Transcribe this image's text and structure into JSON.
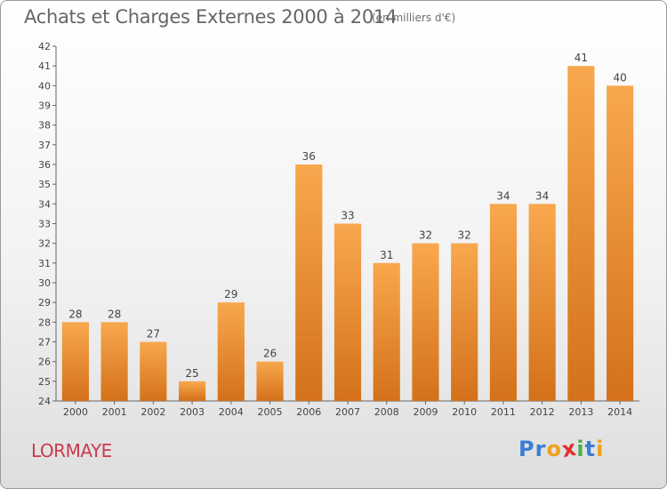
{
  "header": {
    "title": "Achats et Charges Externes 2000 à 2014",
    "subtitle": "(en milliers d'€)"
  },
  "footer": {
    "place": "LORMAYE",
    "logo_letters": [
      {
        "ch": "P",
        "color": "#3a7fd5"
      },
      {
        "ch": "r",
        "color": "#3a7fd5"
      },
      {
        "ch": "o",
        "color": "#f0a020"
      },
      {
        "ch": "x",
        "color": "#e03030"
      },
      {
        "ch": "i",
        "color": "#49b049"
      },
      {
        "ch": "t",
        "color": "#3a7fd5"
      },
      {
        "ch": "i",
        "color": "#f0a020"
      }
    ]
  },
  "chart_data": {
    "type": "bar",
    "title": "Achats et Charges Externes 2000 à 2014",
    "subtitle": "(en milliers d'€)",
    "categories": [
      "2000",
      "2001",
      "2002",
      "2003",
      "2004",
      "2005",
      "2006",
      "2007",
      "2008",
      "2009",
      "2010",
      "2011",
      "2012",
      "2013",
      "2014"
    ],
    "values": [
      28,
      28,
      27,
      25,
      29,
      26,
      36,
      33,
      31,
      32,
      32,
      34,
      34,
      41,
      40
    ],
    "ylim": [
      24,
      42
    ],
    "yticks": [
      24,
      25,
      26,
      27,
      28,
      29,
      30,
      31,
      32,
      33,
      34,
      35,
      36,
      37,
      38,
      39,
      40,
      41,
      42
    ],
    "xlabel": "",
    "ylabel": "",
    "grid": false,
    "bar_color_light": "#f8a84e",
    "bar_color_dark": "#d4711a"
  }
}
